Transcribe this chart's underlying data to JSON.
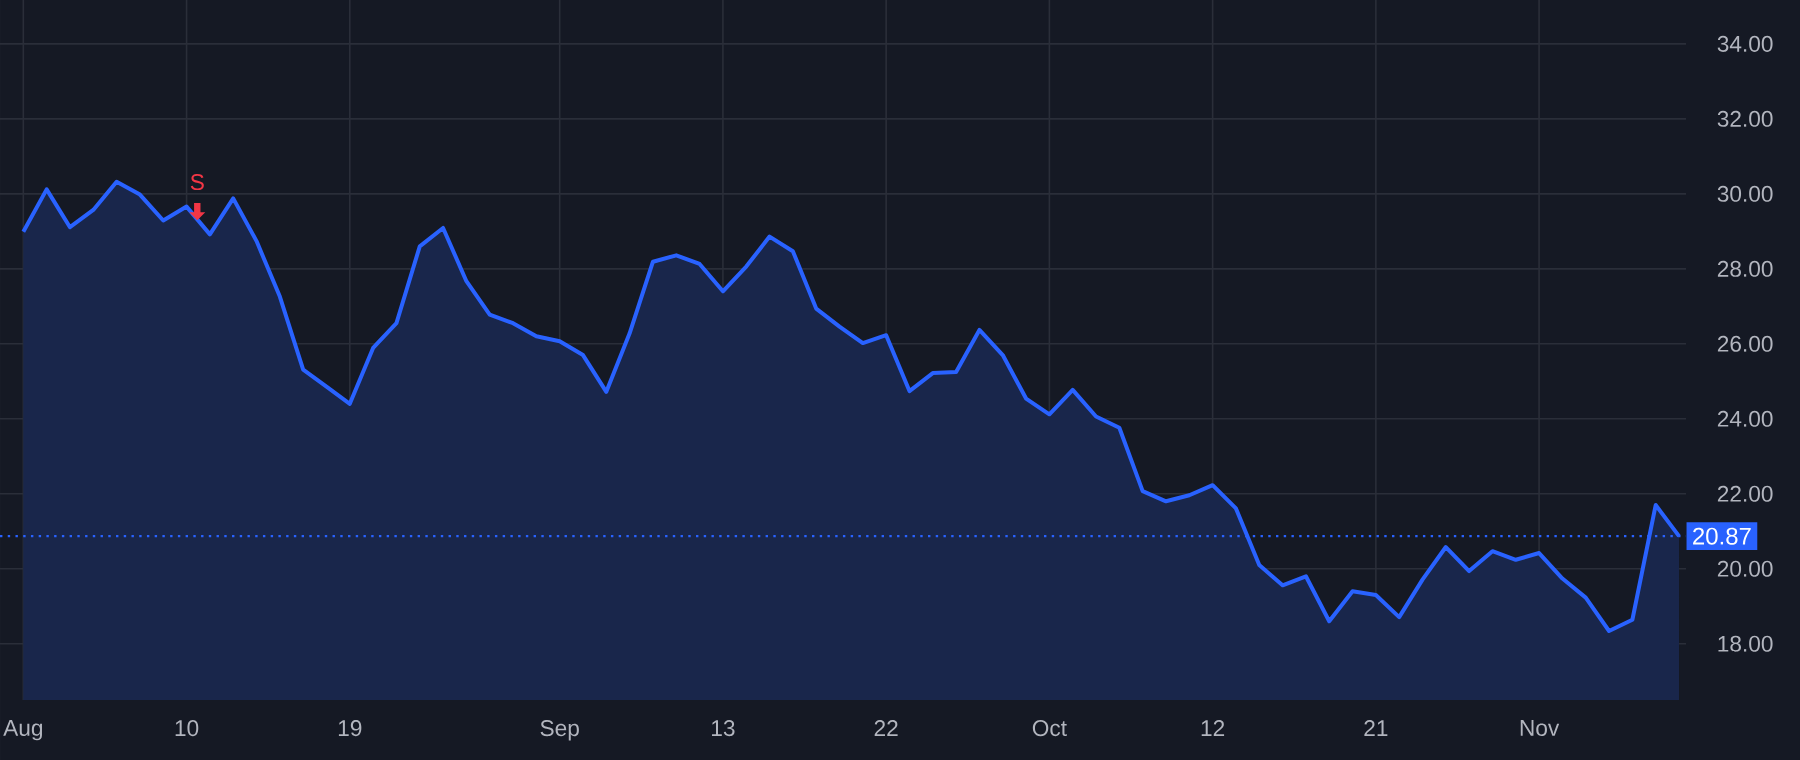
{
  "chart_data": {
    "type": "area",
    "categories": [
      "Aug",
      null,
      null,
      null,
      null,
      null,
      null,
      "10",
      null,
      null,
      null,
      null,
      null,
      null,
      "19",
      null,
      null,
      null,
      null,
      null,
      null,
      null,
      null,
      "Sep",
      null,
      null,
      null,
      null,
      null,
      null,
      "13",
      null,
      null,
      null,
      null,
      null,
      null,
      "22",
      null,
      null,
      null,
      null,
      null,
      null,
      "Oct",
      null,
      null,
      null,
      null,
      null,
      null,
      "12",
      null,
      null,
      null,
      null,
      null,
      null,
      "21",
      null,
      null,
      null,
      null,
      null,
      null,
      "Nov",
      null,
      null,
      null,
      null,
      null,
      null
    ],
    "series": [
      {
        "color": "#2962ff",
        "values": [
          28.99,
          30.12,
          29.11,
          29.57,
          30.32,
          29.98,
          29.29,
          29.66,
          28.92,
          29.88,
          28.74,
          27.26,
          25.31,
          24.86,
          24.4,
          25.89,
          26.55,
          28.6,
          29.09,
          27.67,
          26.78,
          26.55,
          26.2,
          26.07,
          25.7,
          24.72,
          26.28,
          28.19,
          28.36,
          28.13,
          27.4,
          28.06,
          28.86,
          28.47,
          26.94,
          26.46,
          26.02,
          26.23,
          24.74,
          25.22,
          25.25,
          26.37,
          25.7,
          24.54,
          24.12,
          24.77,
          24.06,
          23.76,
          22.07,
          21.8,
          21.96,
          22.23,
          21.61,
          20.1,
          19.56,
          19.8,
          18.6,
          19.4,
          19.3,
          18.71,
          19.71,
          20.58,
          19.94,
          20.47,
          20.24,
          20.42,
          19.74,
          19.23,
          18.34,
          18.64,
          21.7,
          20.87
        ]
      }
    ],
    "ylim": [
      16.5,
      35.17
    ],
    "yticks": [
      {
        "value": 18,
        "label": "18.00"
      },
      {
        "value": 20,
        "label": "20.00"
      },
      {
        "value": 22,
        "label": "22.00"
      },
      {
        "value": 24,
        "label": "24.00"
      },
      {
        "value": 26,
        "label": "26.00"
      },
      {
        "value": 28,
        "label": "28.00"
      },
      {
        "value": 30,
        "label": "30.00"
      },
      {
        "value": 32,
        "label": "32.00"
      },
      {
        "value": 34,
        "label": "34.00"
      }
    ],
    "ref_lines": [
      {
        "axis": "y",
        "value": 20.87,
        "label": "20.87",
        "color": "#2962ff",
        "line_style": "dotted"
      }
    ],
    "annotations": [
      "S"
    ],
    "grid": true,
    "legend": false,
    "marker": "none",
    "line_style": "solid"
  }
}
